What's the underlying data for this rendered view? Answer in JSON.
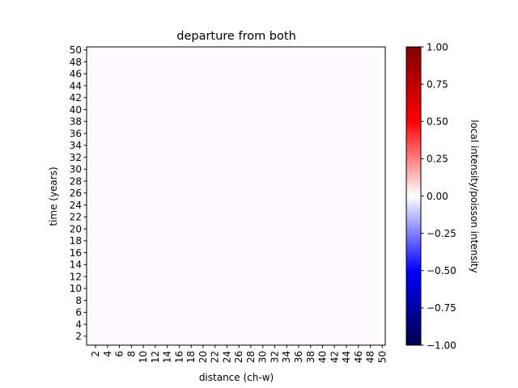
{
  "chart_data": {
    "type": "heatmap",
    "title": "departure from both",
    "xlabel": "distance (ch-w)",
    "ylabel": "time (years)",
    "x_ticks": [
      2,
      4,
      6,
      8,
      10,
      12,
      14,
      16,
      18,
      20,
      22,
      24,
      26,
      28,
      30,
      32,
      34,
      36,
      38,
      40,
      42,
      44,
      46,
      48,
      50
    ],
    "y_ticks": [
      2,
      4,
      6,
      8,
      10,
      12,
      14,
      16,
      18,
      20,
      22,
      24,
      26,
      28,
      30,
      32,
      34,
      36,
      38,
      40,
      42,
      44,
      46,
      48,
      50
    ],
    "xlim": [
      1,
      50
    ],
    "ylim": [
      1,
      50
    ],
    "uniform_value": 0.0,
    "cell_color": "#fdfbfd",
    "colorbar": {
      "label": "local intensity/poisson intensity",
      "min": -1.0,
      "max": 1.0,
      "ticks": [
        -1.0,
        -0.75,
        -0.5,
        -0.25,
        0.0,
        0.25,
        0.5,
        0.75,
        1.0
      ],
      "tick_labels": [
        "−1.00",
        "−0.75",
        "−0.50",
        "−0.25",
        "0.00",
        "0.25",
        "0.50",
        "0.75",
        "1.00"
      ],
      "colormap": "seismic",
      "colors": [
        "#00004c",
        "#0000ff",
        "#ffffff",
        "#ff0000",
        "#800000"
      ]
    }
  }
}
